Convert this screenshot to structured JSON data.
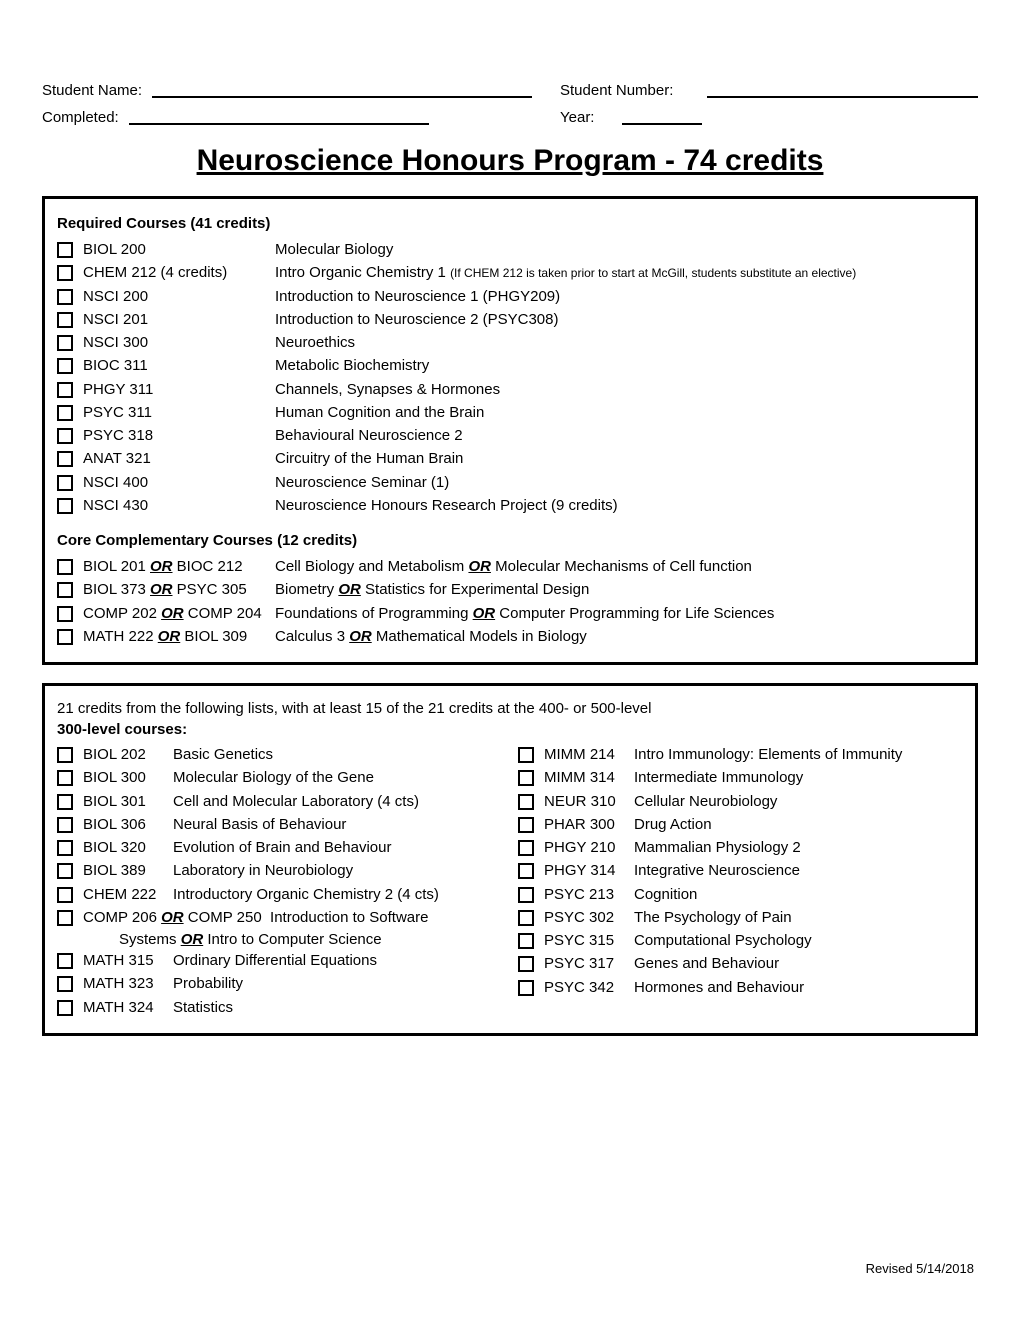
{
  "header": {
    "student_name_label": "Student Name:",
    "student_number_label": "Student Number:",
    "completed_label": "Completed:",
    "year_label": "Year:"
  },
  "title": "Neuroscience Honours Program - 74 credits",
  "required": {
    "heading": "Required Courses (41 credits)",
    "rows": [
      {
        "code": "BIOL 200",
        "desc": "Molecular Biology"
      },
      {
        "code": "CHEM 212 (4 credits)",
        "desc_prefix": "Intro Organic Chemistry 1 ",
        "note": "(If CHEM 212 is taken prior to start at McGill, students substitute an elective)"
      },
      {
        "code": "NSCI 200",
        "desc": "Introduction to Neuroscience 1 (PHGY209)"
      },
      {
        "code": "NSCI 201",
        "desc": "Introduction to Neuroscience 2 (PSYC308)"
      },
      {
        "code": "NSCI 300",
        "desc": "Neuroethics"
      },
      {
        "code": "BIOC 311",
        "desc": "Metabolic Biochemistry"
      },
      {
        "code": "PHGY 311",
        "desc": "Channels, Synapses & Hormones"
      },
      {
        "code": "PSYC 311",
        "desc": "Human Cognition and the Brain"
      },
      {
        "code": "PSYC 318",
        "desc": "Behavioural Neuroscience 2"
      },
      {
        "code": "ANAT 321",
        "desc": "Circuitry of the Human Brain"
      },
      {
        "code": "NSCI 400",
        "desc": "Neuroscience Seminar (1)"
      },
      {
        "code": "NSCI 430",
        "desc": "Neuroscience Honours Research Project (9 credits)"
      }
    ]
  },
  "core_comp": {
    "heading": "Core Complementary Courses (12 credits)",
    "rows": [
      {
        "code_a": "BIOL 201 ",
        "code_b": " BIOC 212",
        "desc_a": "Cell Biology and Metabolism ",
        "desc_b": " Molecular Mechanisms of Cell function"
      },
      {
        "code_a": "BIOL 373 ",
        "code_b": " PSYC 305",
        "desc_a": "Biometry ",
        "desc_b": " Statistics for Experimental Design"
      },
      {
        "code_a": "COMP 202 ",
        "code_b": " COMP 204",
        "desc_a": "Foundations of Programming ",
        "desc_b": " Computer Programming for Life Sciences"
      },
      {
        "code_a": "MATH 222 ",
        "code_b": " BIOL 309",
        "desc_a": "Calculus 3 ",
        "desc_b": " Mathematical Models in Biology"
      }
    ]
  },
  "list21": {
    "intro": "21 credits from the following lists, with at least 15 of the 21 credits at the 400- or 500-level",
    "subheading": "300-level courses:",
    "left": [
      {
        "code": "BIOL 202",
        "desc": "Basic Genetics"
      },
      {
        "code": "BIOL 300",
        "desc": "Molecular Biology of the Gene"
      },
      {
        "code": "BIOL 301",
        "desc": "Cell and Molecular Laboratory (4 cts)"
      },
      {
        "code": "BIOL 306",
        "desc": "Neural Basis of Behaviour"
      },
      {
        "code": "BIOL 320",
        "desc": "Evolution of Brain and Behaviour"
      },
      {
        "code": "BIOL 389",
        "desc": "Laboratory in Neurobiology"
      },
      {
        "code": "CHEM 222",
        "desc": "Introductory Organic Chemistry 2 (4 cts)"
      }
    ],
    "left_or": {
      "code_a": "COMP 206 ",
      "code_b": " COMP 250",
      "desc_line1": "Introduction to Software",
      "desc_line2_a": "Systems ",
      "desc_line2_b": " Intro to Computer Science"
    },
    "left_tail": [
      {
        "code": "MATH 315",
        "desc": "Ordinary Differential Equations"
      },
      {
        "code": "MATH 323",
        "desc": "Probability"
      },
      {
        "code": "MATH 324",
        "desc": "Statistics"
      }
    ],
    "right": [
      {
        "code": "MIMM 214",
        "desc": "Intro Immunology: Elements of Immunity"
      },
      {
        "code": "MIMM 314",
        "desc": "Intermediate Immunology"
      },
      {
        "code": "NEUR 310",
        "desc": "Cellular Neurobiology"
      },
      {
        "code": "PHAR 300",
        "desc": "Drug Action"
      },
      {
        "code": "PHGY 210",
        "desc": "Mammalian Physiology 2"
      },
      {
        "code": "PHGY 314",
        "desc": "Integrative Neuroscience"
      },
      {
        "code": "PSYC 213",
        "desc": "Cognition"
      },
      {
        "code": "PSYC 302",
        "desc": "The Psychology of Pain"
      },
      {
        "code": "PSYC 315",
        "desc": "Computational Psychology"
      },
      {
        "code": "PSYC 317",
        "desc": "Genes and Behaviour"
      },
      {
        "code": "PSYC 342",
        "desc": "Hormones and Behaviour"
      }
    ]
  },
  "or_word": "OR",
  "revised": "Revised 5/14/2018"
}
